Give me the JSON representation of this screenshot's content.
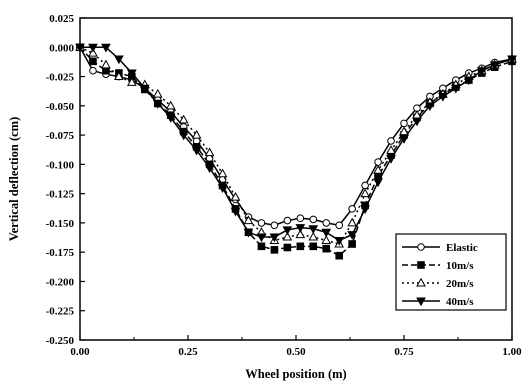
{
  "chart_data": {
    "type": "line",
    "title": "",
    "xlabel": "Wheel position (m)",
    "ylabel": "Vertical deflection (cm)",
    "xlim": [
      0.0,
      1.0
    ],
    "ylim": [
      -0.25,
      0.025
    ],
    "x_ticks": [
      0.0,
      0.25,
      0.5,
      0.75,
      1.0
    ],
    "x_tick_labels": [
      "0.00",
      "0.25",
      "0.50",
      "0.75",
      "1.00"
    ],
    "y_ticks": [
      0.025,
      0.0,
      -0.025,
      -0.05,
      -0.075,
      -0.1,
      -0.125,
      -0.15,
      -0.175,
      -0.2,
      -0.225,
      -0.25
    ],
    "y_tick_labels": [
      "0.025",
      "0.000",
      "-0.025",
      "-0.050",
      "-0.075",
      "-0.100",
      "-0.125",
      "-0.150",
      "-0.175",
      "-0.200",
      "-0.225",
      "-0.250"
    ],
    "grid": false,
    "legend_position": "lower-right",
    "x": [
      0.0,
      0.03,
      0.06,
      0.09,
      0.12,
      0.15,
      0.18,
      0.21,
      0.24,
      0.27,
      0.3,
      0.33,
      0.36,
      0.39,
      0.42,
      0.45,
      0.48,
      0.51,
      0.54,
      0.57,
      0.6,
      0.63,
      0.66,
      0.69,
      0.72,
      0.75,
      0.78,
      0.81,
      0.84,
      0.87,
      0.9,
      0.93,
      0.96,
      1.0
    ],
    "series": [
      {
        "name": "Elastic",
        "marker": "circle-open",
        "values": [
          0.0,
          -0.02,
          -0.023,
          -0.025,
          -0.028,
          -0.035,
          -0.045,
          -0.055,
          -0.068,
          -0.08,
          -0.095,
          -0.113,
          -0.13,
          -0.145,
          -0.15,
          -0.152,
          -0.148,
          -0.146,
          -0.147,
          -0.15,
          -0.152,
          -0.138,
          -0.118,
          -0.098,
          -0.08,
          -0.065,
          -0.052,
          -0.042,
          -0.035,
          -0.028,
          -0.022,
          -0.018,
          -0.013,
          -0.01
        ]
      },
      {
        "name": "10m/s",
        "marker": "square-filled",
        "values": [
          0.0,
          -0.012,
          -0.02,
          -0.022,
          -0.025,
          -0.036,
          -0.048,
          -0.058,
          -0.072,
          -0.085,
          -0.1,
          -0.118,
          -0.138,
          -0.158,
          -0.17,
          -0.173,
          -0.171,
          -0.17,
          -0.17,
          -0.172,
          -0.178,
          -0.168,
          -0.135,
          -0.11,
          -0.092,
          -0.075,
          -0.06,
          -0.048,
          -0.04,
          -0.034,
          -0.028,
          -0.022,
          -0.017,
          -0.012
        ]
      },
      {
        "name": "20m/s",
        "marker": "triangle-up-open",
        "values": [
          0.0,
          -0.005,
          -0.015,
          -0.025,
          -0.03,
          -0.032,
          -0.04,
          -0.05,
          -0.062,
          -0.075,
          -0.09,
          -0.108,
          -0.128,
          -0.148,
          -0.158,
          -0.165,
          -0.162,
          -0.16,
          -0.162,
          -0.165,
          -0.168,
          -0.15,
          -0.125,
          -0.105,
          -0.088,
          -0.072,
          -0.058,
          -0.047,
          -0.04,
          -0.032,
          -0.025,
          -0.02,
          -0.015,
          -0.01
        ]
      },
      {
        "name": "40m/s",
        "marker": "triangle-down-filled",
        "values": [
          0.0,
          0.0,
          0.0,
          -0.01,
          -0.022,
          -0.035,
          -0.048,
          -0.06,
          -0.075,
          -0.088,
          -0.103,
          -0.12,
          -0.14,
          -0.158,
          -0.162,
          -0.162,
          -0.156,
          -0.154,
          -0.155,
          -0.158,
          -0.165,
          -0.16,
          -0.138,
          -0.115,
          -0.095,
          -0.078,
          -0.063,
          -0.05,
          -0.042,
          -0.035,
          -0.028,
          -0.02,
          -0.015,
          -0.01
        ]
      }
    ]
  }
}
